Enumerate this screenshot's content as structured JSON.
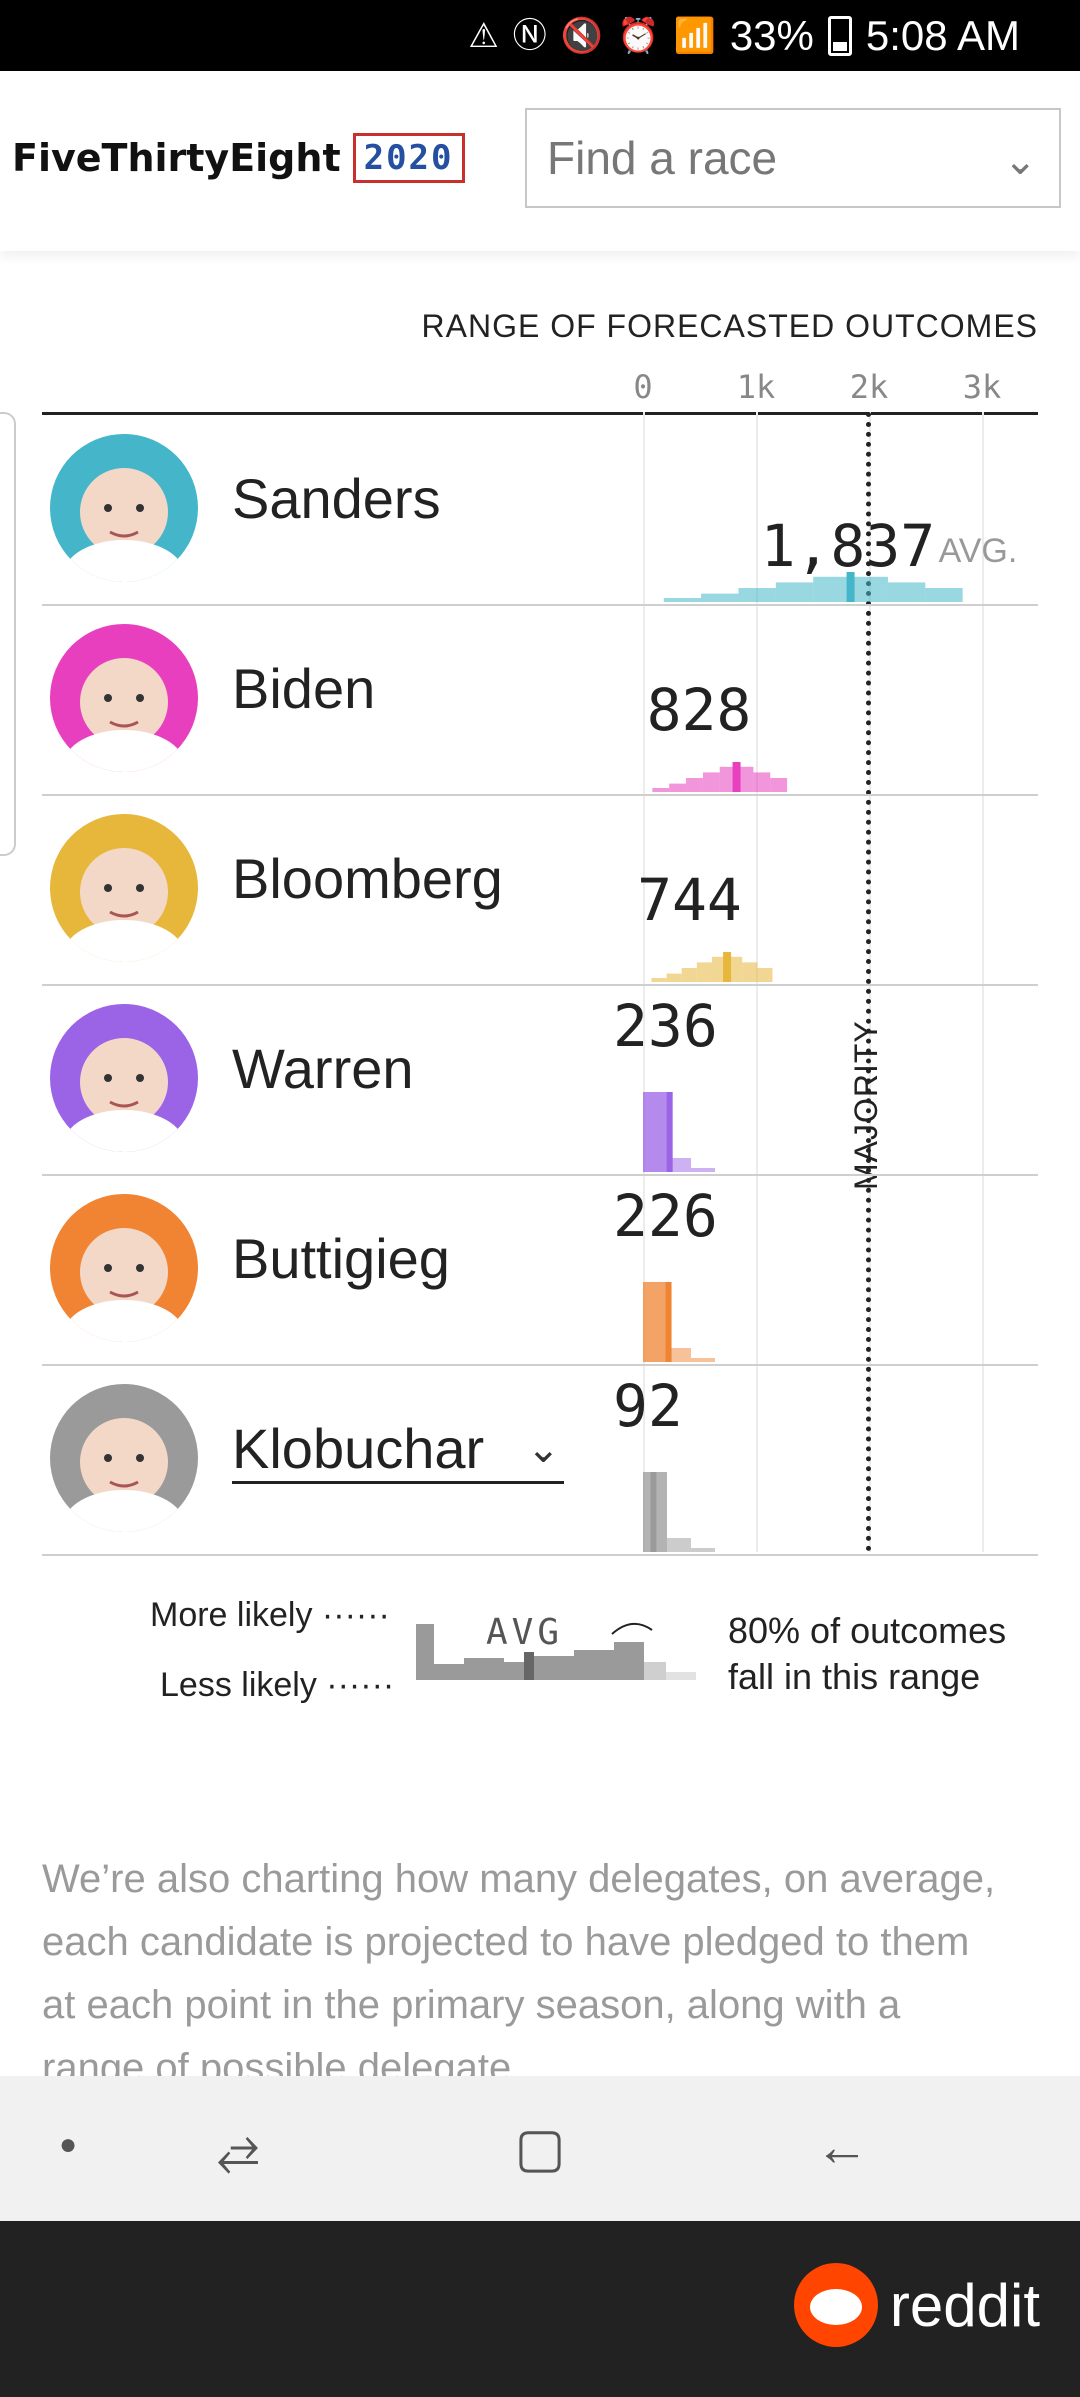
{
  "status_bar": {
    "battery": "33%",
    "time": "5:08 AM"
  },
  "header": {
    "brand": "FiveThirtyEight",
    "year": "2020",
    "search_placeholder": "Find a race"
  },
  "chart_data": {
    "type": "bar",
    "title": "RANGE OF FORECASTED OUTCOMES",
    "x_ticks": [
      "0",
      "1k",
      "2k",
      "3k"
    ],
    "xlim": [
      0,
      3000
    ],
    "majority_label": "MAJORITY",
    "majority_value": 1991,
    "avg_label": "AVG.",
    "categories": [
      "Sanders",
      "Biden",
      "Bloomberg",
      "Warren",
      "Buttigieg",
      "Klobuchar"
    ],
    "values": [
      1837,
      828,
      744,
      236,
      226,
      92
    ],
    "value_labels": [
      "1,837",
      "828",
      "744",
      "236",
      "226",
      "92"
    ],
    "colors": [
      "#45b6c9",
      "#e83fbf",
      "#e6b73a",
      "#9b63e6",
      "#f08433",
      "#9a9a9a"
    ]
  },
  "legend": {
    "more_likely": "More likely",
    "less_likely": "Less likely",
    "avg": "AVG",
    "note_line1": "80% of outcomes",
    "note_line2": "fall in this range"
  },
  "paragraph": "We’re also charting how many delegates, on average, each candidate is projected to have pledged to them at each point in the primary season, along with a range of possible delegate",
  "footer": {
    "brand": "reddit"
  }
}
